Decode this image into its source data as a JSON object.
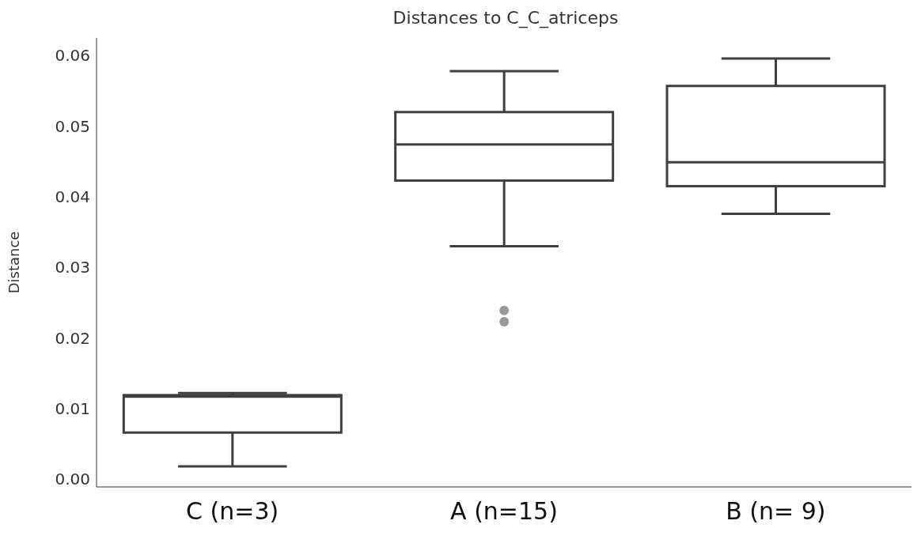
{
  "chart_data": {
    "type": "box",
    "title": "Distances to C_C_atriceps",
    "ylabel": "Distance",
    "categories": [
      "C (n=3)",
      "A (n=15)",
      "B (n= 9)"
    ],
    "boxes": [
      {
        "low": 0.0018,
        "q1": 0.0066,
        "median": 0.0117,
        "q3": 0.0119,
        "high": 0.0122
      },
      {
        "low": 0.033,
        "q1": 0.0423,
        "median": 0.0474,
        "q3": 0.052,
        "high": 0.0578,
        "outliers": [
          0.0239,
          0.0223
        ]
      },
      {
        "low": 0.0376,
        "q1": 0.0415,
        "median": 0.0449,
        "q3": 0.0557,
        "high": 0.0596
      }
    ],
    "color": "#3f3f3f",
    "ylim": [
      -0.0011,
      0.0625
    ],
    "yticks": [
      {
        "value": 0,
        "label": "0.00"
      },
      {
        "value": 0.01,
        "label": "0.01"
      },
      {
        "value": 0.02,
        "label": "0.02"
      },
      {
        "value": 0.03,
        "label": "0.03"
      },
      {
        "value": 0.04,
        "label": "0.04"
      },
      {
        "value": 0.05,
        "label": "0.05"
      },
      {
        "value": 0.06,
        "label": "0.06"
      }
    ],
    "grid": false,
    "legend": false
  }
}
